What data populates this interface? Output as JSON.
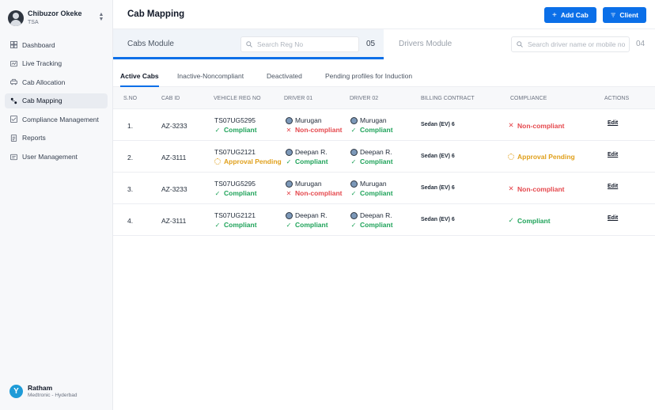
{
  "user": {
    "name": "Chibuzor Okeke",
    "role": "TSA"
  },
  "nav": [
    {
      "label": "Dashboard",
      "icon": "dashboard-icon",
      "active": false
    },
    {
      "label": "Live Tracking",
      "icon": "live-tracking-icon",
      "active": false
    },
    {
      "label": "Cab Allocation",
      "icon": "car-icon",
      "active": false
    },
    {
      "label": "Cab Mapping",
      "icon": "map-pin-icon",
      "active": true
    },
    {
      "label": "Compliance Management",
      "icon": "compliance-icon",
      "active": false
    },
    {
      "label": "Reports",
      "icon": "report-icon",
      "active": false
    },
    {
      "label": "User Management",
      "icon": "user-management-icon",
      "active": false
    }
  ],
  "org": {
    "logo": "Y",
    "name": "Ratham",
    "sub": "Medtronic - Hyderbad"
  },
  "header": {
    "title": "Cab Mapping",
    "add_label": "Add Cab",
    "client_label": "Client"
  },
  "modules": {
    "cabs": {
      "label": "Cabs Module",
      "placeholder": "Search Reg No",
      "count": "05"
    },
    "drivers": {
      "label": "Drivers Module",
      "placeholder": "Search driver name or mobile no",
      "count": "04"
    }
  },
  "tabs": [
    "Active Cabs",
    "Inactive-Noncompliant",
    "Deactivated",
    "Pending profiles for Induction"
  ],
  "columns": [
    "S.NO",
    "CAB ID",
    "VEHICLE REG NO",
    "DRIVER 01",
    "DRIVER 02",
    "BILLING CONTRACT",
    "COMPLIANCE",
    "ACTIONS"
  ],
  "rows": [
    {
      "sno": "1.",
      "cab_id": "AZ-3233",
      "reg": "TS07UG5295",
      "reg_status": "Compliant",
      "d1": "Murugan",
      "d1_status": "Non-compliant",
      "d2": "Murugan",
      "d2_status": "Compliant",
      "billing": "Sedan (EV) 6",
      "compliance": "Non-compliant",
      "action": "Edit"
    },
    {
      "sno": "2.",
      "cab_id": "AZ-3111",
      "reg": "TS07UG2121",
      "reg_status": "Approval Pending",
      "d1": "Deepan R.",
      "d1_status": "Compliant",
      "d2": "Deepan R.",
      "d2_status": "Compliant",
      "billing": "Sedan (EV) 6",
      "compliance": "Approval Pending",
      "action": "Edit"
    },
    {
      "sno": "3.",
      "cab_id": "AZ-3233",
      "reg": "TS07UG5295",
      "reg_status": "Compliant",
      "d1": "Murugan",
      "d1_status": "Non-compliant",
      "d2": "Murugan",
      "d2_status": "Compliant",
      "billing": "Sedan (EV) 6",
      "compliance": "Non-compliant",
      "action": "Edit"
    },
    {
      "sno": "4.",
      "cab_id": "AZ-3111",
      "reg": "TS07UG2121",
      "reg_status": "Compliant",
      "d1": "Deepan R.",
      "d1_status": "Compliant",
      "d2": "Deepan R.",
      "d2_status": "Compliant",
      "billing": "Sedan (EV) 6",
      "compliance": "Compliant",
      "action": "Edit"
    }
  ],
  "colors": {
    "accent": "#0b6fe8",
    "compliant": "#1fa35a",
    "noncompliant": "#e5484d",
    "pending": "#e0a01c"
  }
}
